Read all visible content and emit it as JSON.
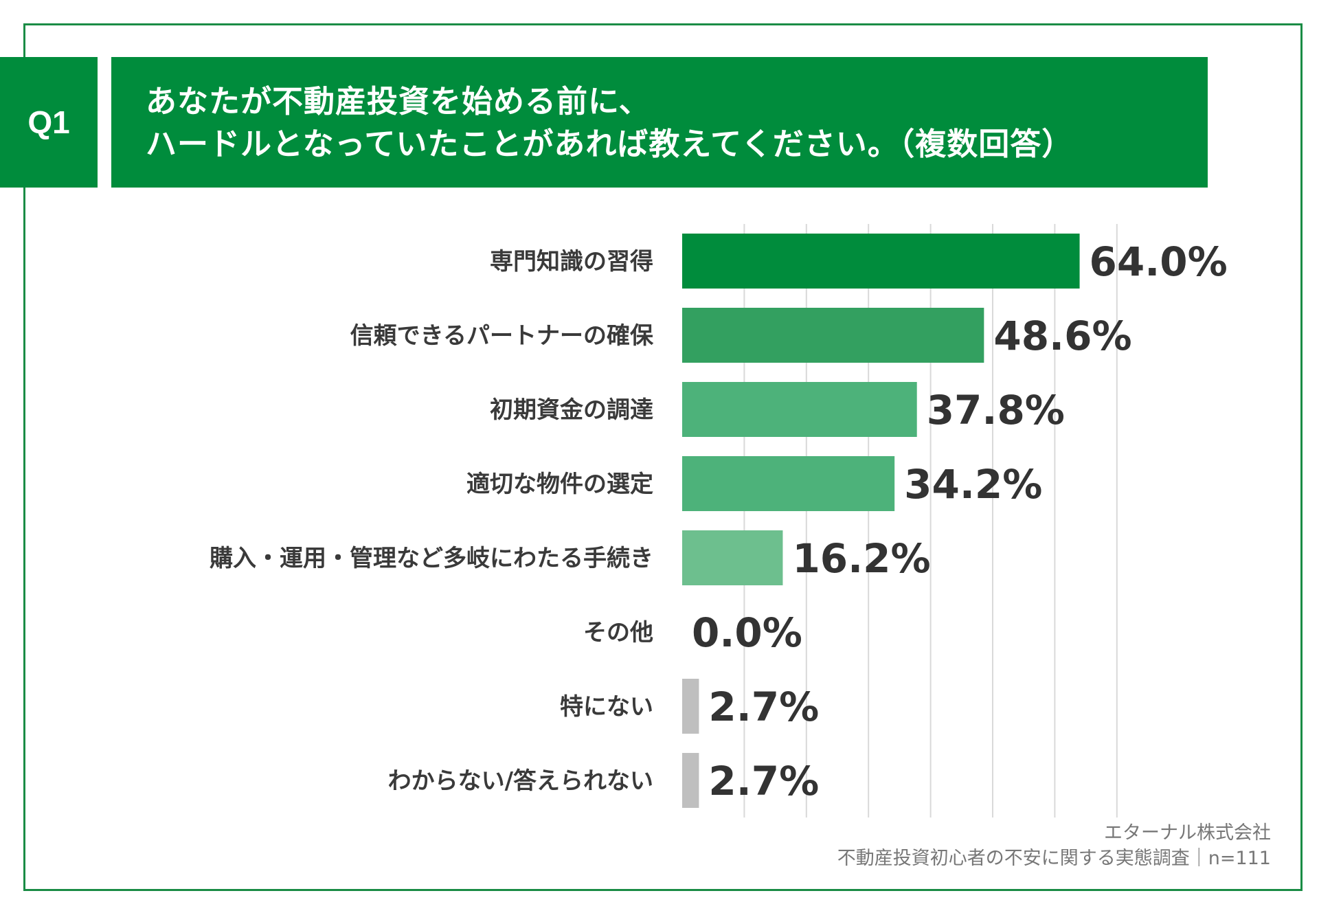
{
  "question": {
    "number": "Q1",
    "line1": "あなたが不動産投資を始める前に、",
    "line2": "ハードルとなっていたことがあれば教えてください。（複数回答）"
  },
  "colors": {
    "frame": "#1a8c45",
    "header_bg": "#008c3c",
    "header_text": "#ffffff",
    "bars": [
      "#008c3c",
      "#33a060",
      "#4db27a",
      "#4db27a",
      "#6dbf8e",
      "#bfbfbf",
      "#bfbfbf",
      "#bfbfbf"
    ],
    "gridline": "#d9d9d9"
  },
  "chart_data": {
    "type": "bar",
    "orientation": "horizontal",
    "categories": [
      "専門知識の習得",
      "信頼できるパートナーの確保",
      "初期資金の調達",
      "適切な物件の選定",
      "購入・運用・管理など多岐にわたる手続き",
      "その他",
      "特にない",
      "わからない/答えられない"
    ],
    "values": [
      64.0,
      48.6,
      37.8,
      34.2,
      16.2,
      0.0,
      2.7,
      2.7
    ],
    "data_labels": [
      "64.0%",
      "48.6%",
      "37.8%",
      "34.2%",
      "16.2%",
      "0.0%",
      "2.7%",
      "2.7%"
    ],
    "xlim": [
      0,
      70
    ],
    "grid_step": 10,
    "grid": true,
    "legend": false
  },
  "footer": {
    "company": "エターナル株式会社",
    "survey": "不動産投資初心者の不安に関する実態調査｜n=111"
  }
}
